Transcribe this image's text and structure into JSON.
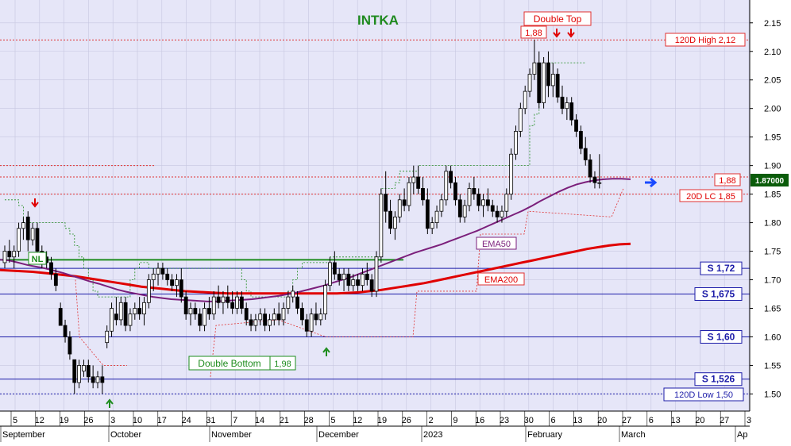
{
  "chart_data": {
    "type": "candlestick",
    "title": "INTKA",
    "colors": {
      "background": "#e6e6f8",
      "title": "#1f8a1f",
      "up_candle": "#ffffff",
      "down_candle": "#000000",
      "ema50": "#7b1f7b",
      "ema200": "#e00000",
      "support": "#1c1ca8",
      "resistance": "#e03030",
      "trail": "#1e8c1e",
      "buy_arrow": "#1e8c1e",
      "sell_arrow": "#e00000",
      "last_price_bg": "#0a5c0a"
    },
    "y_axis": {
      "range": [
        1.47,
        2.19
      ],
      "ticks": [
        "1.50",
        "1.55",
        "1.60",
        "1.65",
        "1.70",
        "1.75",
        "1.80",
        "1.85",
        "1.90",
        "1.95",
        "2.00",
        "2.05",
        "2.10",
        "2.15"
      ],
      "side": "right"
    },
    "x_axis": {
      "day_ticks": [
        "5",
        "12",
        "19",
        "26",
        "3",
        "10",
        "17",
        "24",
        "31",
        "7",
        "14",
        "21",
        "28",
        "5",
        "12",
        "19",
        "26",
        "2",
        "9",
        "16",
        "23",
        "30",
        "6",
        "13",
        "20",
        "27",
        "6",
        "13",
        "20",
        "27",
        "3"
      ],
      "month_labels": [
        "September",
        "October",
        "November",
        "December",
        "2023",
        "February",
        "March",
        "Ap"
      ]
    },
    "last_price": "1.87000",
    "right_arrow": "blue-right-arrow",
    "labels": {
      "double_top": "Double Top",
      "double_top_value": "1,88",
      "double_bottom": "Double Bottom",
      "double_bottom_value": "1,98",
      "neckline": "NL",
      "ema50": "EMA50",
      "ema200": "EMA200",
      "high120": "120D High 2,12",
      "low120": "120D Low 1,50",
      "lc20": "20D LC 1,85",
      "res188": "1,88"
    },
    "levels": [
      {
        "label": "S 1,72",
        "value": 1.72
      },
      {
        "label": "S 1,675",
        "value": 1.675
      },
      {
        "label": "S 1,60",
        "value": 1.6
      },
      {
        "label": "S 1,526",
        "value": 1.526
      }
    ],
    "ohlc": [
      [
        1.73,
        1.76,
        1.72,
        1.75
      ],
      [
        1.75,
        1.77,
        1.73,
        1.74
      ],
      [
        1.74,
        1.76,
        1.72,
        1.75
      ],
      [
        1.75,
        1.8,
        1.74,
        1.79
      ],
      [
        1.79,
        1.81,
        1.77,
        1.8
      ],
      [
        1.81,
        1.82,
        1.75,
        1.77
      ],
      [
        1.77,
        1.8,
        1.76,
        1.79
      ],
      [
        1.79,
        1.8,
        1.74,
        1.75
      ],
      [
        1.75,
        1.76,
        1.72,
        1.73
      ],
      [
        1.74,
        1.75,
        1.72,
        1.73
      ],
      [
        1.73,
        1.74,
        1.7,
        1.71
      ],
      [
        1.71,
        1.72,
        1.68,
        1.69
      ],
      [
        1.65,
        1.66,
        1.62,
        1.62
      ],
      [
        1.62,
        1.63,
        1.59,
        1.6
      ],
      [
        1.6,
        1.61,
        1.56,
        1.57
      ],
      [
        1.56,
        1.56,
        1.5,
        1.52
      ],
      [
        1.52,
        1.56,
        1.51,
        1.55
      ],
      [
        1.54,
        1.56,
        1.53,
        1.55
      ],
      [
        1.55,
        1.56,
        1.52,
        1.53
      ],
      [
        1.53,
        1.55,
        1.51,
        1.52
      ],
      [
        1.52,
        1.54,
        1.51,
        1.53
      ],
      [
        1.53,
        1.55,
        1.5,
        1.52
      ],
      [
        1.59,
        1.62,
        1.58,
        1.61
      ],
      [
        1.61,
        1.66,
        1.6,
        1.65
      ],
      [
        1.64,
        1.67,
        1.62,
        1.63
      ],
      [
        1.63,
        1.67,
        1.62,
        1.66
      ],
      [
        1.66,
        1.67,
        1.61,
        1.62
      ],
      [
        1.62,
        1.65,
        1.61,
        1.64
      ],
      [
        1.64,
        1.66,
        1.63,
        1.65
      ],
      [
        1.65,
        1.67,
        1.63,
        1.64
      ],
      [
        1.64,
        1.67,
        1.62,
        1.66
      ],
      [
        1.66,
        1.71,
        1.65,
        1.7
      ],
      [
        1.7,
        1.72,
        1.68,
        1.71
      ],
      [
        1.71,
        1.73,
        1.69,
        1.72
      ],
      [
        1.72,
        1.73,
        1.7,
        1.71
      ],
      [
        1.71,
        1.72,
        1.69,
        1.7
      ],
      [
        1.7,
        1.71,
        1.68,
        1.69
      ],
      [
        1.69,
        1.71,
        1.67,
        1.7
      ],
      [
        1.7,
        1.72,
        1.66,
        1.67
      ],
      [
        1.67,
        1.68,
        1.63,
        1.64
      ],
      [
        1.64,
        1.66,
        1.62,
        1.65
      ],
      [
        1.65,
        1.66,
        1.63,
        1.64
      ],
      [
        1.64,
        1.65,
        1.61,
        1.62
      ],
      [
        1.62,
        1.66,
        1.61,
        1.65
      ],
      [
        1.65,
        1.67,
        1.63,
        1.64
      ],
      [
        1.64,
        1.68,
        1.63,
        1.67
      ],
      [
        1.67,
        1.69,
        1.65,
        1.66
      ],
      [
        1.66,
        1.68,
        1.64,
        1.67
      ],
      [
        1.67,
        1.69,
        1.65,
        1.66
      ],
      [
        1.66,
        1.68,
        1.64,
        1.65
      ],
      [
        1.65,
        1.68,
        1.64,
        1.67
      ],
      [
        1.67,
        1.68,
        1.64,
        1.65
      ],
      [
        1.65,
        1.66,
        1.62,
        1.63
      ],
      [
        1.63,
        1.64,
        1.61,
        1.62
      ],
      [
        1.62,
        1.64,
        1.61,
        1.63
      ],
      [
        1.63,
        1.65,
        1.62,
        1.64
      ],
      [
        1.64,
        1.65,
        1.61,
        1.62
      ],
      [
        1.62,
        1.64,
        1.61,
        1.63
      ],
      [
        1.63,
        1.65,
        1.62,
        1.64
      ],
      [
        1.64,
        1.66,
        1.62,
        1.63
      ],
      [
        1.63,
        1.66,
        1.62,
        1.65
      ],
      [
        1.65,
        1.68,
        1.64,
        1.67
      ],
      [
        1.67,
        1.69,
        1.66,
        1.68
      ],
      [
        1.67,
        1.68,
        1.64,
        1.65
      ],
      [
        1.65,
        1.66,
        1.62,
        1.63
      ],
      [
        1.63,
        1.64,
        1.6,
        1.61
      ],
      [
        1.61,
        1.65,
        1.6,
        1.64
      ],
      [
        1.64,
        1.66,
        1.62,
        1.63
      ],
      [
        1.63,
        1.65,
        1.62,
        1.64
      ],
      [
        1.64,
        1.7,
        1.63,
        1.69
      ],
      [
        1.69,
        1.74,
        1.68,
        1.73
      ],
      [
        1.73,
        1.75,
        1.7,
        1.71
      ],
      [
        1.71,
        1.72,
        1.69,
        1.7
      ],
      [
        1.7,
        1.72,
        1.68,
        1.71
      ],
      [
        1.71,
        1.72,
        1.68,
        1.69
      ],
      [
        1.69,
        1.71,
        1.68,
        1.7
      ],
      [
        1.7,
        1.71,
        1.68,
        1.69
      ],
      [
        1.69,
        1.72,
        1.68,
        1.71
      ],
      [
        1.71,
        1.73,
        1.69,
        1.7
      ],
      [
        1.7,
        1.71,
        1.67,
        1.68
      ],
      [
        1.68,
        1.75,
        1.67,
        1.74
      ],
      [
        1.74,
        1.86,
        1.73,
        1.85
      ],
      [
        1.85,
        1.89,
        1.8,
        1.82
      ],
      [
        1.82,
        1.84,
        1.78,
        1.79
      ],
      [
        1.79,
        1.82,
        1.77,
        1.81
      ],
      [
        1.81,
        1.85,
        1.8,
        1.84
      ],
      [
        1.84,
        1.86,
        1.82,
        1.83
      ],
      [
        1.83,
        1.88,
        1.82,
        1.87
      ],
      [
        1.87,
        1.9,
        1.85,
        1.88
      ],
      [
        1.88,
        1.9,
        1.85,
        1.86
      ],
      [
        1.86,
        1.88,
        1.83,
        1.84
      ],
      [
        1.84,
        1.86,
        1.78,
        1.79
      ],
      [
        1.79,
        1.81,
        1.78,
        1.8
      ],
      [
        1.8,
        1.83,
        1.79,
        1.82
      ],
      [
        1.82,
        1.85,
        1.81,
        1.84
      ],
      [
        1.84,
        1.9,
        1.83,
        1.89
      ],
      [
        1.89,
        1.9,
        1.86,
        1.87
      ],
      [
        1.87,
        1.88,
        1.83,
        1.84
      ],
      [
        1.84,
        1.85,
        1.8,
        1.81
      ],
      [
        1.81,
        1.84,
        1.8,
        1.83
      ],
      [
        1.83,
        1.87,
        1.82,
        1.86
      ],
      [
        1.86,
        1.88,
        1.84,
        1.85
      ],
      [
        1.85,
        1.86,
        1.82,
        1.83
      ],
      [
        1.83,
        1.85,
        1.81,
        1.84
      ],
      [
        1.84,
        1.86,
        1.82,
        1.83
      ],
      [
        1.83,
        1.84,
        1.81,
        1.82
      ],
      [
        1.82,
        1.83,
        1.8,
        1.81
      ],
      [
        1.81,
        1.83,
        1.8,
        1.82
      ],
      [
        1.82,
        1.86,
        1.81,
        1.85
      ],
      [
        1.85,
        1.93,
        1.84,
        1.92
      ],
      [
        1.92,
        1.97,
        1.91,
        1.96
      ],
      [
        1.96,
        2.01,
        1.95,
        2.0
      ],
      [
        2.0,
        2.04,
        1.99,
        2.03
      ],
      [
        2.03,
        2.07,
        2.02,
        2.06
      ],
      [
        2.06,
        2.12,
        2.05,
        2.08
      ],
      [
        2.08,
        2.1,
        2.0,
        2.01
      ],
      [
        2.01,
        2.09,
        2.0,
        2.08
      ],
      [
        2.08,
        2.1,
        2.02,
        2.04
      ],
      [
        2.04,
        2.08,
        2.02,
        2.06
      ],
      [
        2.06,
        2.07,
        2.01,
        2.02
      ],
      [
        2.02,
        2.04,
        1.99,
        2.0
      ],
      [
        2.0,
        2.02,
        1.98,
        2.01
      ],
      [
        2.01,
        2.02,
        1.97,
        1.98
      ],
      [
        1.98,
        1.99,
        1.95,
        1.96
      ],
      [
        1.96,
        1.97,
        1.92,
        1.93
      ],
      [
        1.93,
        1.95,
        1.9,
        1.91
      ],
      [
        1.91,
        1.92,
        1.87,
        1.88
      ],
      [
        1.88,
        1.89,
        1.86,
        1.87
      ],
      [
        1.87,
        1.92,
        1.86,
        1.87
      ]
    ],
    "ema50": [
      1.735,
      1.734,
      1.73,
      1.726,
      1.723,
      1.72,
      1.716,
      1.712,
      1.707,
      1.702,
      1.697,
      1.693,
      1.688,
      1.683,
      1.679,
      1.676,
      1.673,
      1.67,
      1.668,
      1.666,
      1.665,
      1.664,
      1.663,
      1.662,
      1.662,
      1.663,
      1.664,
      1.665,
      1.666,
      1.668,
      1.67,
      1.672,
      1.675,
      1.678,
      1.682,
      1.686,
      1.69,
      1.695,
      1.7,
      1.705,
      1.711,
      1.717,
      1.723,
      1.729,
      1.735,
      1.741,
      1.747,
      1.752,
      1.757,
      1.762,
      1.768,
      1.774,
      1.78,
      1.786,
      1.793,
      1.8,
      1.807,
      1.814,
      1.821,
      1.829,
      1.838,
      1.846,
      1.854,
      1.861,
      1.867,
      1.871,
      1.874,
      1.876,
      1.877,
      1.877,
      1.876
    ],
    "ema200": [
      1.717,
      1.716,
      1.715,
      1.714,
      1.712,
      1.71,
      1.708,
      1.706,
      1.703,
      1.7,
      1.697,
      1.694,
      1.691,
      1.688,
      1.686,
      1.684,
      1.682,
      1.68,
      1.679,
      1.678,
      1.677,
      1.676,
      1.676,
      1.676,
      1.676,
      1.676,
      1.676,
      1.676,
      1.676,
      1.676,
      1.676,
      1.676,
      1.677,
      1.678,
      1.68,
      1.682,
      1.685,
      1.688,
      1.691,
      1.694,
      1.698,
      1.702,
      1.706,
      1.71,
      1.714,
      1.718,
      1.722,
      1.726,
      1.73,
      1.734,
      1.738,
      1.742,
      1.746,
      1.75,
      1.754,
      1.757,
      1.76,
      1.762,
      1.763
    ],
    "trail": [
      1.84,
      1.84,
      1.84,
      1.83,
      1.8,
      1.8,
      1.8,
      1.8,
      1.8,
      1.8,
      1.8,
      1.8,
      1.8,
      1.79,
      1.78,
      1.76,
      1.74,
      1.72,
      1.7,
      1.68,
      1.67,
      1.67,
      1.67,
      1.67,
      1.67,
      1.67,
      1.67,
      1.7,
      1.72,
      1.73,
      1.73,
      1.72,
      1.72,
      1.72,
      1.72,
      1.72,
      1.72,
      1.72,
      1.72,
      1.72,
      1.72,
      1.72,
      1.72,
      1.72,
      1.72,
      1.72,
      1.72,
      1.72,
      1.72,
      1.72,
      1.72,
      1.7,
      1.68,
      1.67,
      1.67,
      1.67,
      1.67,
      1.67,
      1.67,
      1.67,
      1.67,
      1.68,
      1.7,
      1.72,
      1.73,
      1.73,
      1.73,
      1.73,
      1.73,
      1.73,
      1.74,
      1.74,
      1.74,
      1.74,
      1.74,
      1.74,
      1.74,
      1.74,
      1.74,
      1.74,
      1.74,
      1.86,
      1.86,
      1.86,
      1.87,
      1.89,
      1.89,
      1.89,
      1.89,
      1.9,
      1.9,
      1.9,
      1.9,
      1.9,
      1.9,
      1.9,
      1.9,
      1.9,
      1.9,
      1.9,
      1.9,
      1.9,
      1.9,
      1.9,
      1.9,
      1.9,
      1.9,
      1.9,
      1.9,
      1.9,
      1.9,
      1.9,
      1.9,
      1.97,
      1.99,
      2.04,
      2.05,
      2.08,
      2.08,
      2.08,
      2.08,
      2.08,
      2.08,
      2.08,
      2.08,
      2.08
    ]
  }
}
